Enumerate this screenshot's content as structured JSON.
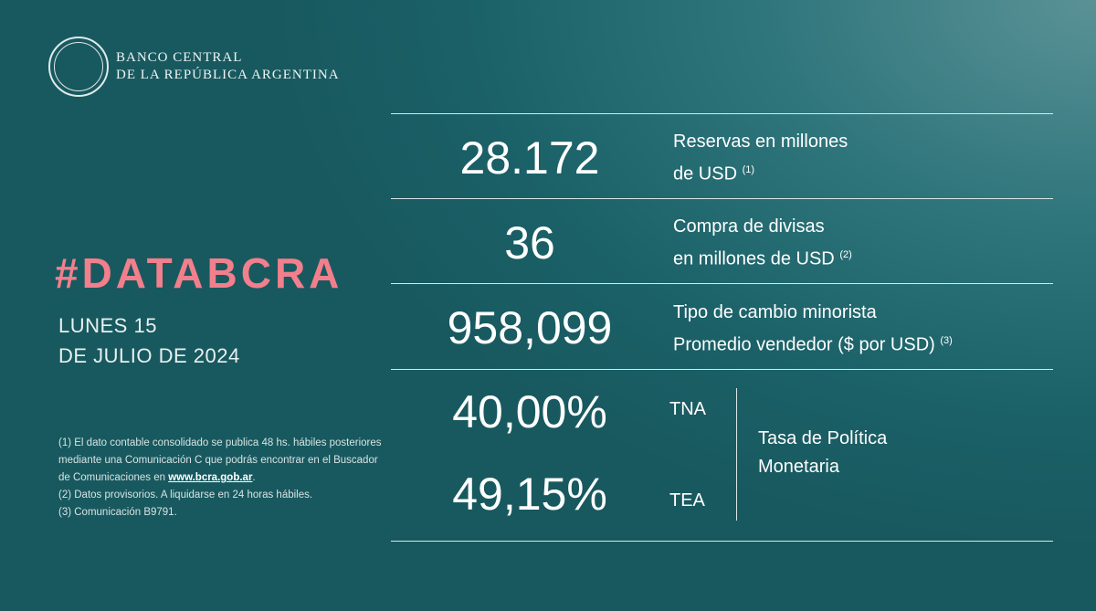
{
  "brand": {
    "line1": "BANCO CENTRAL",
    "line2": "DE LA REPÚBLICA ARGENTINA"
  },
  "hashtag": "#DATABCRA",
  "date": {
    "line1": "LUNES 15",
    "line2": "DE JULIO DE 2024"
  },
  "metrics": [
    {
      "value": "28.172",
      "label1": "Reservas en millones",
      "label2": "de USD",
      "note": "(1)"
    },
    {
      "value": "36",
      "label1": "Compra de divisas",
      "label2": "en millones de USD",
      "note": "(2)"
    },
    {
      "value": "958,099",
      "label1": "Tipo de cambio minorista",
      "label2": "Promedio vendedor ($ por USD)",
      "note": "(3)"
    }
  ],
  "rates": {
    "tna_value": "40,00%",
    "tna_label": "TNA",
    "tea_value": "49,15%",
    "tea_label": "TEA",
    "label1": "Tasa de Política",
    "label2": "Monetaria"
  },
  "notes": {
    "n1": "(1) El dato contable consolidado se publica 48 hs. hábiles posteriores mediante una Comunicación C que podrás encontrar en el Buscador de Comunicaciones en ",
    "link": "www.bcra.gob.ar",
    "n1_end": ".",
    "n2": "(2) Datos provisorios. A liquidarse en 24 horas hábiles.",
    "n3": "(3) Comunicación B9791."
  },
  "colors": {
    "accent": "#f27f8c",
    "background": "#1b6168"
  }
}
